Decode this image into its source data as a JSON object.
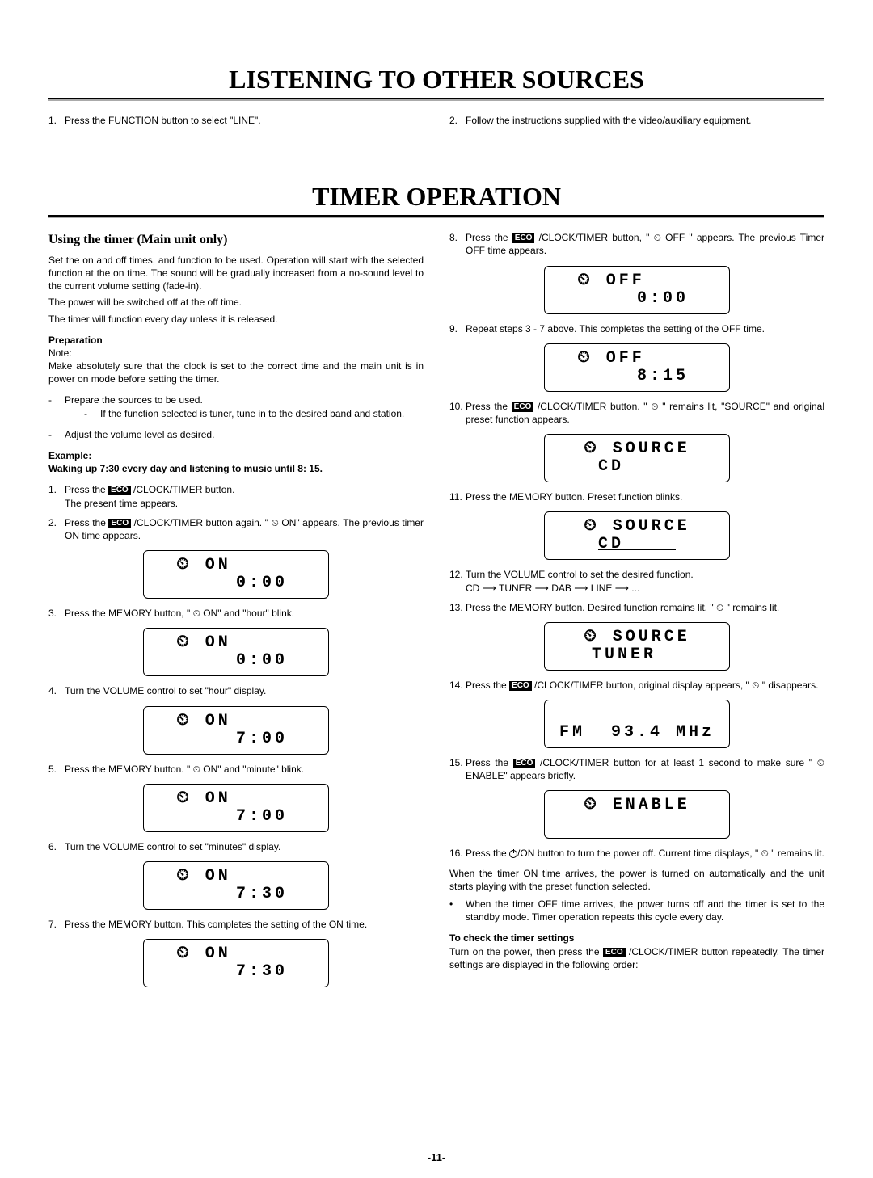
{
  "sections": {
    "listening_title": "LISTENING TO OTHER SOURCES",
    "timer_title": "TIMER OPERATION"
  },
  "listening": {
    "left_step_num": "1.",
    "left_step": "Press the FUNCTION button to select \"LINE\".",
    "right_step_num": "2.",
    "right_step": "Follow the instructions supplied with the video/auxiliary equipment."
  },
  "timer": {
    "subhead": "Using the timer (Main unit only)",
    "intro_p1": "Set the on and off times, and function to be used. Operation will start with the selected function at the on time. The sound will be gradually increased from a no-sound level to the current volume setting (fade-in).",
    "intro_p2": "The power will be switched off at the off time.",
    "intro_p3": "The timer will function every day unless it is released.",
    "preparation_label": "Preparation",
    "note_label": "Note:",
    "note_text": "Make absolutely sure that the clock is set to the correct time and the main unit is in power on mode before setting the timer.",
    "dash_a": "Prepare the sources to be used.",
    "dash_a_sub": "If the function selected is tuner, tune in to the desired band and station.",
    "dash_b": "Adjust the volume level as desired.",
    "example_label": "Example:",
    "example_text": "Waking up 7:30 every day and listening to music until 8: 15.",
    "step1_num": "1.",
    "step1a": "Press the ",
    "step1b": " /CLOCK/TIMER button.",
    "step1_sub": "The present time appears.",
    "step2_num": "2.",
    "step2a": "Press the ",
    "step2b": " /CLOCK/TIMER button again. \" ",
    "step2c": " ON\" appears. The previous timer ON time appears.",
    "lcd1_l1": "⏲ ON     ",
    "lcd1_l2": "    0:00",
    "step3_num": "3.",
    "step3a": "Press the MEMORY button, \" ",
    "step3b": " ON\" and \"hour\" blink.",
    "lcd2_l1": "⏲ ON     ",
    "lcd2_l2": "    0:00",
    "step4_num": "4.",
    "step4": "Turn the VOLUME control to set \"hour\" display.",
    "lcd3_l1": "⏲ ON     ",
    "lcd3_l2": "    7:00",
    "step5_num": "5.",
    "step5a": "Press the MEMORY button. \" ",
    "step5b": " ON\" and \"minute\" blink.",
    "lcd4_l1": "⏲ ON     ",
    "lcd4_l2": "    7:00",
    "step6_num": "6.",
    "step6": "Turn the VOLUME control to set \"minutes\" display.",
    "lcd5_l1": "⏲ ON     ",
    "lcd5_l2": "    7:30",
    "step7_num": "7.",
    "step7": "Press the MEMORY button. This completes the setting of the ON time.",
    "lcd6_l1": "⏲ ON     ",
    "lcd6_l2": "    7:30",
    "step8_num": "8.",
    "step8a": "Press the ",
    "step8b": " /CLOCK/TIMER button, \" ",
    "step8c": " OFF \" appears. The previous Timer OFF time appears.",
    "lcd7_l1": "⏲ OFF    ",
    "lcd7_l2": "    0:00",
    "step9_num": "9.",
    "step9": "Repeat steps 3 - 7 above. This completes the setting of the OFF time.",
    "lcd8_l1": "⏲ OFF    ",
    "lcd8_l2": "    8:15",
    "step10_num": "10.",
    "step10a": "Press the ",
    "step10b": " /CLOCK/TIMER button. \" ",
    "step10c": " \" remains lit, \"SOURCE\" and original preset function appears.",
    "lcd9_l1": "⏲ SOURCE",
    "lcd9_l2": "CD    ",
    "step11_num": "11.",
    "step11": "Press the MEMORY button. Preset function blinks.",
    "lcd10_l1": "⏲ SOURCE",
    "lcd10_l2": "CD    ",
    "step12_num": "12.",
    "step12": "Turn the VOLUME control to set the desired function.",
    "step12_sub": "CD ⟶ TUNER ⟶ DAB ⟶ LINE ⟶ ...",
    "step13_num": "13.",
    "step13a": "Press the MEMORY button. Desired function remains lit. \" ",
    "step13b": " \" remains lit.",
    "lcd11_l1": "⏲ SOURCE",
    "lcd11_l2": "TUNER  ",
    "step14_num": "14.",
    "step14a": "Press the ",
    "step14b": " /CLOCK/TIMER button, original display appears, \" ",
    "step14c": " \" disappears.",
    "lcd12_l1": "          ",
    "lcd12_l2": "FM  93.4 MHz",
    "step15_num": "15.",
    "step15a": "Press the ",
    "step15b": " /CLOCK/TIMER button for at least 1 second to make sure \" ",
    "step15c": " ENABLE\" appears briefly.",
    "lcd13_l1": "⏲ ENABLE",
    "lcd13_l2": " ",
    "step16_num": "16.",
    "step16a": "Press the ",
    "step16b": "/ON button to turn the power off. Current time displays, \" ",
    "step16c": " \" remains lit.",
    "after16_p1": "When the timer ON time arrives, the power is turned on automatically and the unit starts playing with the preset function selected.",
    "after16_bullet": "When the timer OFF time arrives, the power turns off and the timer is set to the standby mode. Timer operation repeats this cycle every day.",
    "check_title": "To check the timer settings",
    "check_a": "Turn on the power, then press the ",
    "check_b": " /CLOCK/TIMER button repeatedly. The timer settings are displayed in the following order:",
    "eco_label": "ECO",
    "page_number": "-11-"
  }
}
